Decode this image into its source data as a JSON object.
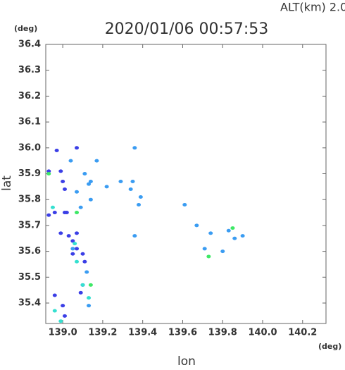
{
  "chart_data": {
    "type": "scatter",
    "title": "2020/01/06 00:57:53",
    "subtitle": "ALT(km) 2.0",
    "x_label": "lon",
    "y_label": "lat",
    "x_unit": "(deg)",
    "y_unit": "(deg)",
    "xlim": [
      138.915,
      140.317
    ],
    "ylim": [
      35.321,
      36.4
    ],
    "xticks": [
      {
        "value": 139.0,
        "label": "139.0"
      },
      139.2,
      139.4,
      139.6,
      139.8,
      {
        "value": 140.0,
        "label": "140.0"
      },
      140.2
    ],
    "yticks": [
      {
        "value": 36.4,
        "label": "36.4"
      },
      36.3,
      36.2,
      36.1,
      {
        "value": 36.0,
        "label": "36.0"
      },
      35.9,
      35.8,
      35.7,
      35.6,
      35.5,
      35.4
    ],
    "series": [
      {
        "color": "#3b3fe6",
        "x": [
          138.97,
          139.07,
          138.99,
          139.0,
          138.93,
          139.01,
          138.96,
          139.01,
          138.99,
          139.03,
          139.07,
          139.05,
          139.1,
          139.07,
          139.0,
          139.01,
          139.1,
          139.09,
          138.96,
          139.02,
          139.05,
          139.11,
          138.93
        ],
        "y": [
          35.99,
          36.0,
          35.91,
          35.87,
          35.91,
          35.84,
          35.75,
          35.75,
          35.67,
          35.66,
          35.67,
          35.59,
          35.59,
          35.61,
          35.39,
          35.35,
          35.47,
          35.44,
          35.43,
          35.75,
          35.64,
          35.56,
          35.74
        ]
      },
      {
        "color": "#3a9cf2",
        "x": [
          139.04,
          139.11,
          139.13,
          139.14,
          139.29,
          139.35,
          139.34,
          139.38,
          139.61,
          139.67,
          139.74,
          139.8,
          139.83,
          139.86,
          139.9,
          139.36,
          139.17,
          139.14,
          139.07,
          139.12,
          139.13,
          139.39,
          139.22,
          139.09,
          139.05,
          139.36,
          139.71
        ],
        "y": [
          35.95,
          35.9,
          35.86,
          35.87,
          35.87,
          35.87,
          35.84,
          35.78,
          35.78,
          35.7,
          35.67,
          35.6,
          35.68,
          35.65,
          35.66,
          36.0,
          35.95,
          35.8,
          35.83,
          35.52,
          35.39,
          35.81,
          35.85,
          35.77,
          35.61,
          35.66,
          35.61
        ]
      },
      {
        "color": "#35e0d0",
        "x": [
          138.95,
          139.06,
          139.07,
          139.1,
          139.13,
          138.96,
          138.99
        ],
        "y": [
          35.77,
          35.63,
          35.56,
          35.47,
          35.42,
          35.37,
          35.33
        ]
      },
      {
        "color": "#3ee866",
        "x": [
          138.93,
          139.07,
          139.73,
          139.85,
          139.14
        ],
        "y": [
          35.9,
          35.75,
          35.58,
          35.69,
          35.47
        ]
      }
    ]
  }
}
